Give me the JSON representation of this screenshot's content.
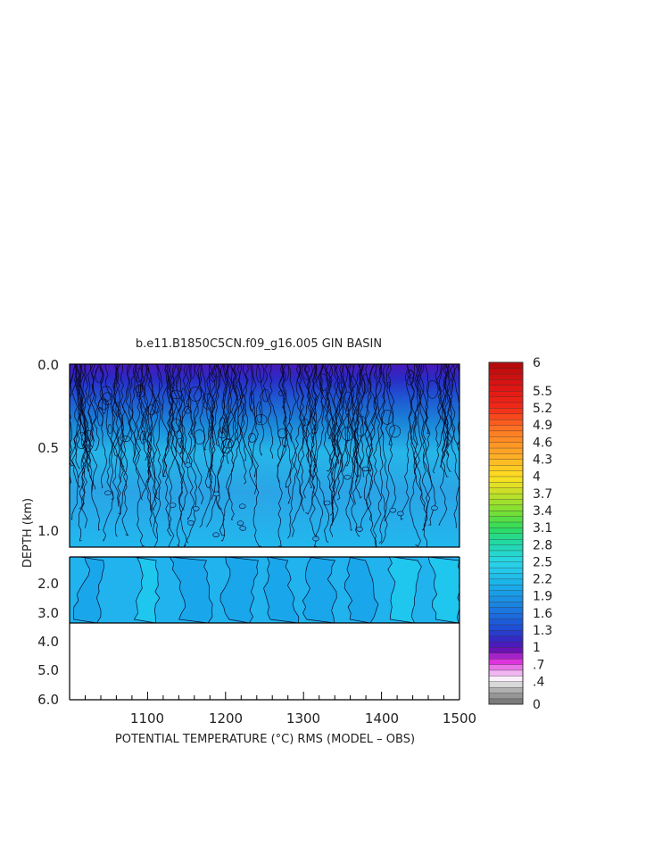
{
  "chart_data": {
    "type": "heatmap",
    "title": "b.e11.B1850C5CN.f09_g16.005 GIN BASIN",
    "xlabel": "POTENTIAL TEMPERATURE (°C) RMS (MODEL – OBS)",
    "ylabel": "DEPTH (km)",
    "x_range": [
      1000,
      1500
    ],
    "x_ticks": [
      "1100",
      "1200",
      "1300",
      "1400",
      "1500"
    ],
    "upper_panel": {
      "y_range": [
        0.0,
        1.2
      ],
      "y_ticks": [
        "0.0",
        "0.5",
        "1.0"
      ]
    },
    "lower_panel": {
      "y_range": [
        1.2,
        6.0
      ],
      "y_ticks": [
        "2.0",
        "3.0",
        "4.0",
        "5.0",
        "6.0"
      ],
      "data_bottom_km": 3.3
    },
    "colorbar_labels": [
      "6",
      "5.5",
      "5.2",
      "4.9",
      "4.6",
      "4.3",
      "4",
      "3.7",
      "3.4",
      "3.1",
      "2.8",
      "2.5",
      "2.2",
      "1.9",
      "1.6",
      "1.3",
      "1",
      ".7",
      ".4",
      "0"
    ],
    "colorbar_range": [
      0,
      6
    ],
    "depth_profile": {
      "depth_km": [
        0.0,
        0.1,
        0.2,
        0.3,
        0.4,
        0.5,
        0.6,
        0.8,
        1.0,
        1.2,
        2.0,
        3.0,
        3.3
      ],
      "rms_typical": [
        1.2,
        1.35,
        1.5,
        1.7,
        1.9,
        2.05,
        2.15,
        2.1,
        2.15,
        2.2,
        2.35,
        2.3,
        2.3
      ]
    },
    "grid": false,
    "colors": {
      "low": "#6b0fb0",
      "mid": "#2f8ee6",
      "high": "#22d4f0"
    }
  }
}
